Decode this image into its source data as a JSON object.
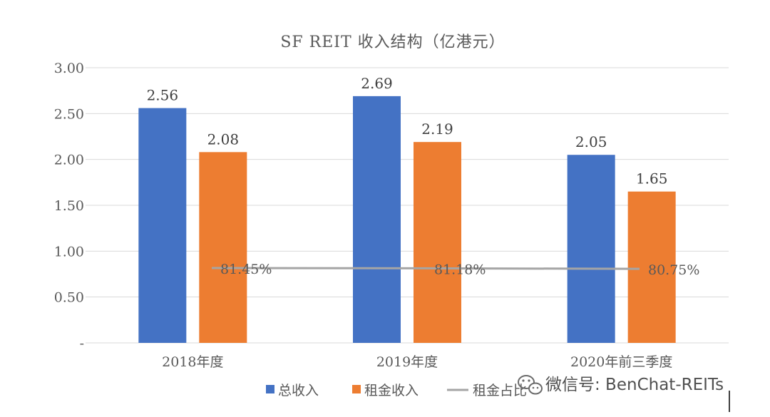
{
  "chart_data": {
    "type": "bar",
    "title": "SF REIT  收入结构（亿港元）",
    "categories": [
      "2018年度",
      "2019年度",
      "2020年前三季度"
    ],
    "series": [
      {
        "name": "总收入",
        "type": "bar",
        "color": "#4472C4",
        "values": [
          2.56,
          2.69,
          2.05
        ],
        "labels": [
          "2.56",
          "2.69",
          "2.05"
        ]
      },
      {
        "name": "租金收入",
        "type": "bar",
        "color": "#ED7D31",
        "values": [
          2.08,
          2.19,
          1.65
        ],
        "labels": [
          "2.08",
          "2.19",
          "1.65"
        ]
      },
      {
        "name": "租金占比",
        "type": "line",
        "color": "#A5A5A5",
        "values": [
          81.45,
          81.18,
          80.75
        ],
        "labels": [
          "81.45%",
          "81.18%",
          "80.75%"
        ]
      }
    ],
    "y_ticks": [
      "3.00",
      "2.50",
      "2.00",
      "1.50",
      "1.00",
      "0.50",
      "-"
    ],
    "ylim": [
      0,
      3
    ],
    "grid": true,
    "legend_position": "bottom"
  },
  "watermark": {
    "text": "微信号: BenChat-REITs",
    "icon": "wechat-icon"
  }
}
